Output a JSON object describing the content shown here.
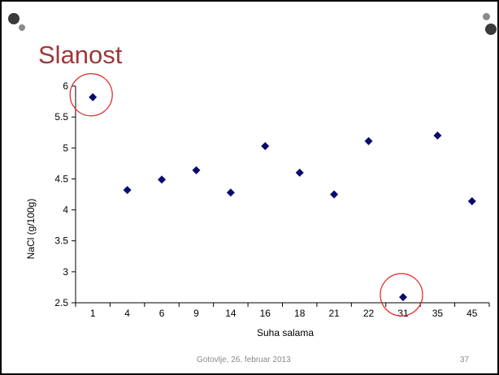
{
  "slide": {
    "title": "Slanost",
    "footer_text": "Gotovlje, 26. februar 2013",
    "page_number": "37"
  },
  "chart_data": {
    "type": "scatter",
    "xlabel": "Suha salama",
    "ylabel": "NaCl (g/100g)",
    "categories": [
      "1",
      "4",
      "6",
      "9",
      "14",
      "16",
      "18",
      "21",
      "22",
      "31",
      "35",
      "45"
    ],
    "values": [
      5.82,
      4.32,
      4.49,
      4.64,
      4.28,
      5.03,
      4.6,
      4.25,
      5.11,
      2.59,
      5.2,
      4.14
    ],
    "ylim": [
      2.5,
      6
    ],
    "yticks": [
      "2.5",
      "3",
      "3.5",
      "4",
      "4.5",
      "5",
      "5.5",
      "6"
    ],
    "grid": false,
    "marker": "diamond",
    "marker_color": "#0a0a6e",
    "highlighted_categories": [
      "1",
      "31"
    ],
    "highlight_color": "#e02020"
  }
}
